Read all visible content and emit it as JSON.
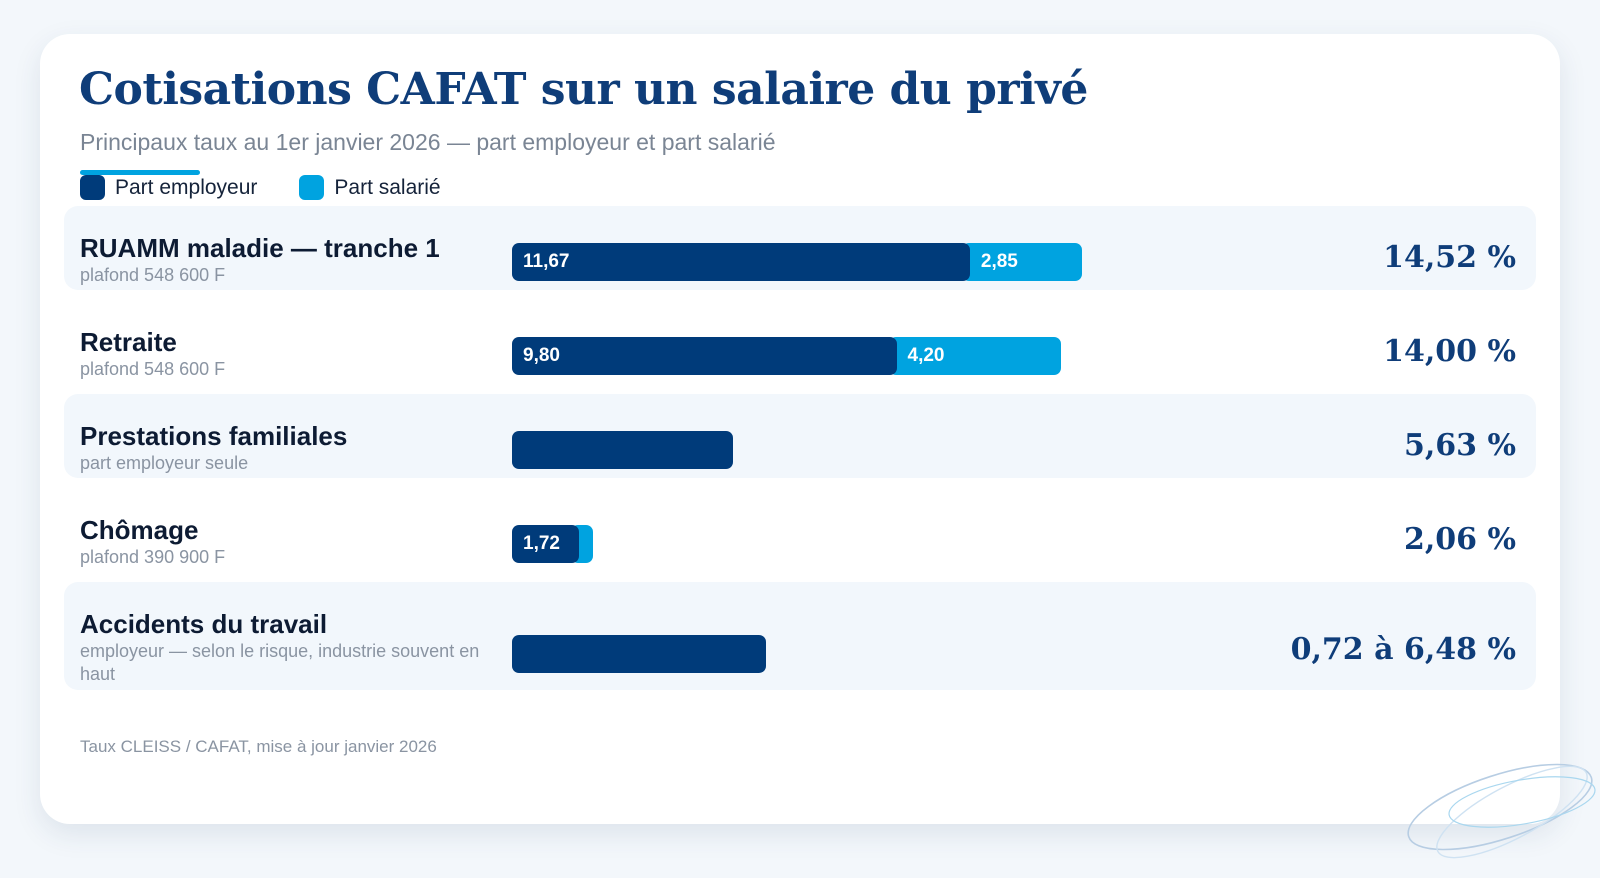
{
  "header": {
    "title": "Cotisations CAFAT sur un salaire du privé",
    "subtitle": "Principaux taux au 1er janvier 2026 — part employeur et part salarié"
  },
  "legend": {
    "employer": "Part employeur",
    "employee": "Part salarié"
  },
  "colors": {
    "employer": "#003b7a",
    "employee": "#00a3e0",
    "accent": "#00a3e0",
    "title": "#0f3d79"
  },
  "icons": [
    "decorative-ellipses-icon"
  ],
  "footer": {
    "source": "Taux CLEISS / CAFAT, mise à jour janvier 2026"
  },
  "chart_data": {
    "type": "bar",
    "orientation": "horizontal",
    "stacked": true,
    "xlim": [
      0,
      18.35
    ],
    "grid": false,
    "legend_position": "top-left",
    "categories": [
      "RUAMM maladie — tranche 1",
      "Retraite",
      "Prestations familiales",
      "Chômage",
      "Accidents du travail"
    ],
    "notes": [
      "plafond 548 600 F",
      "plafond 548 600 F",
      "part employeur seule",
      "plafond 390 900 F",
      "employeur — selon le risque, industrie souvent en haut"
    ],
    "series": [
      {
        "name": "Part employeur",
        "values": [
          11.67,
          9.8,
          5.63,
          1.72,
          6.48
        ]
      },
      {
        "name": "Part salarié",
        "values": [
          2.85,
          4.2,
          0,
          0.34,
          0
        ]
      }
    ],
    "data_labels": {
      "employer": [
        "11,67",
        "9,80",
        "",
        "1,72",
        ""
      ],
      "employee": [
        "2,85",
        "4,20",
        "",
        "",
        ""
      ]
    },
    "totals": [
      "14,52 %",
      "14,00 %",
      "5,63 %",
      "2,06 %",
      "0,72 à 6,48 %"
    ]
  }
}
